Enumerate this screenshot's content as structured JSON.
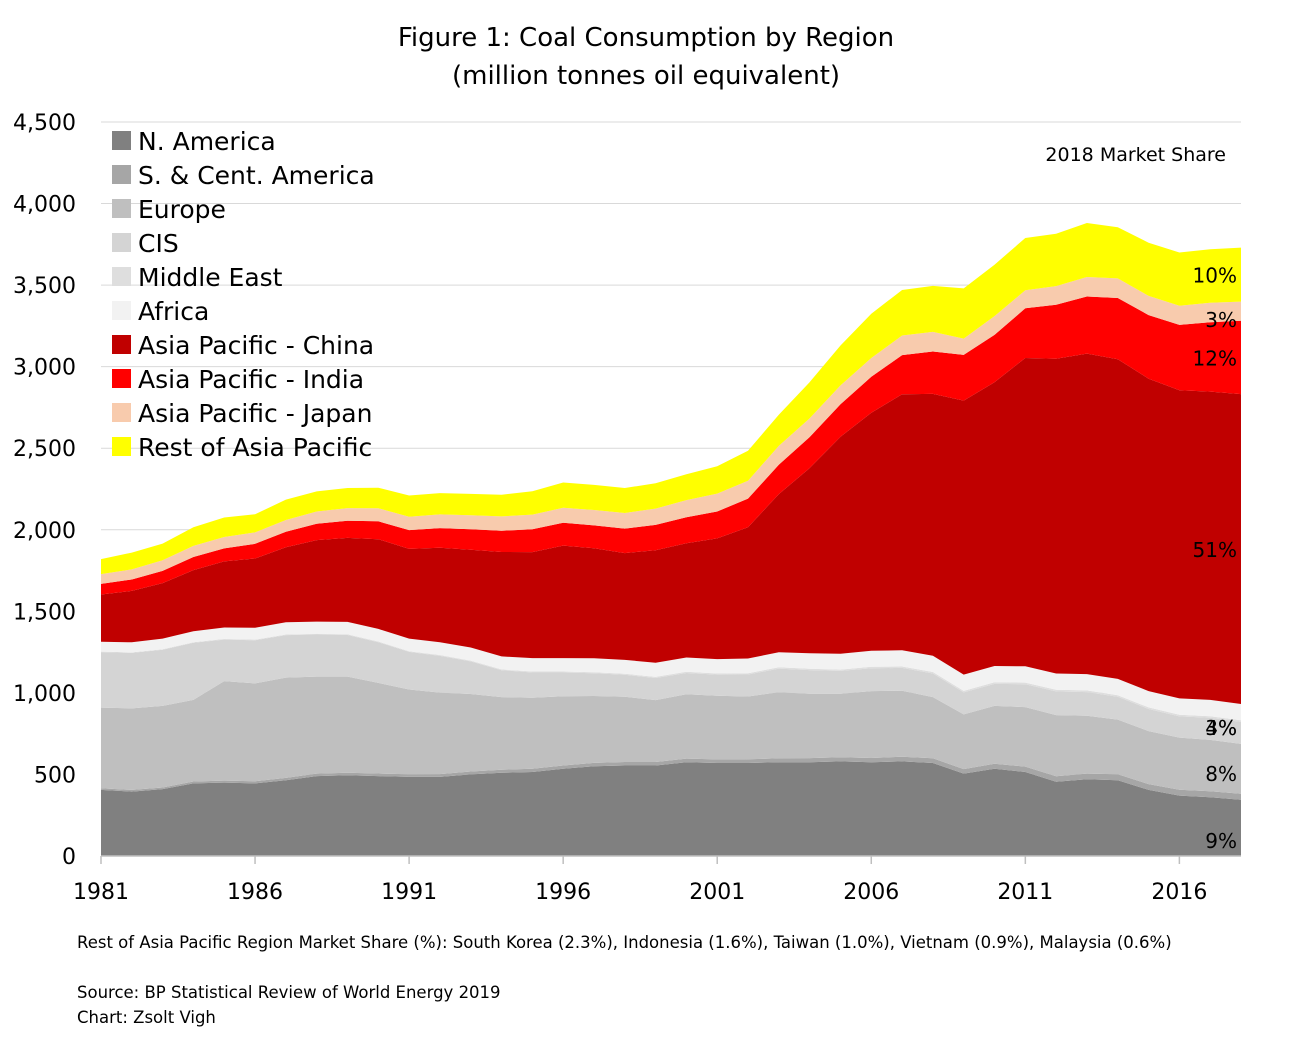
{
  "chart_data": {
    "type": "area",
    "title": "Figure 1: Coal Consumption by Region",
    "subtitle": "(million tonnes oil equivalent)",
    "xlabel": "",
    "ylabel": "",
    "ylim": [
      0,
      4500
    ],
    "yticks": [
      0,
      500,
      1000,
      1500,
      2000,
      2500,
      3000,
      3500,
      4000,
      4500
    ],
    "ytick_labels": [
      "0",
      "500",
      "1,000",
      "1,500",
      "2,000",
      "2,500",
      "3,000",
      "3,500",
      "4,000",
      "4,500"
    ],
    "xticks": [
      1981,
      1986,
      1991,
      1996,
      2001,
      2006,
      2011,
      2016
    ],
    "xtick_labels": [
      "1981",
      "1986",
      "1991",
      "1996",
      "2001",
      "2006",
      "2011",
      "2016"
    ],
    "grid": "horizontal",
    "stacked": true,
    "legend_position": "top-left",
    "x": [
      1981,
      1982,
      1983,
      1984,
      1985,
      1986,
      1987,
      1988,
      1989,
      1990,
      1991,
      1992,
      1993,
      1994,
      1995,
      1996,
      1997,
      1998,
      1999,
      2000,
      2001,
      2002,
      2003,
      2004,
      2005,
      2006,
      2007,
      2008,
      2009,
      2010,
      2011,
      2012,
      2013,
      2014,
      2015,
      2016,
      2017,
      2018
    ],
    "series": [
      {
        "name": "N. America",
        "color": "#808080",
        "values": [
          405,
          395,
          410,
          445,
          450,
          445,
          465,
          490,
          495,
          490,
          485,
          485,
          500,
          510,
          515,
          535,
          550,
          555,
          555,
          575,
          570,
          570,
          575,
          575,
          580,
          575,
          580,
          570,
          505,
          535,
          515,
          455,
          470,
          465,
          405,
          370,
          360,
          345
        ]
      },
      {
        "name": "S. & Cent. America",
        "color": "#a6a6a6",
        "values": [
          10,
          10,
          10,
          12,
          12,
          13,
          14,
          15,
          15,
          16,
          16,
          17,
          18,
          19,
          20,
          20,
          21,
          21,
          21,
          22,
          22,
          23,
          24,
          25,
          25,
          26,
          28,
          29,
          28,
          30,
          33,
          34,
          35,
          36,
          36,
          36,
          37,
          37
        ]
      },
      {
        "name": "Europe",
        "color": "#bfbfbf",
        "values": [
          495,
          500,
          500,
          500,
          610,
          600,
          615,
          595,
          590,
          555,
          520,
          500,
          475,
          445,
          435,
          425,
          410,
          400,
          380,
          395,
          390,
          385,
          405,
          395,
          390,
          410,
          405,
          375,
          335,
          355,
          365,
          375,
          355,
          335,
          325,
          320,
          315,
          305
        ]
      },
      {
        "name": "CIS",
        "color": "#d4d4d4",
        "values": [
          340,
          340,
          345,
          350,
          255,
          265,
          260,
          258,
          255,
          250,
          230,
          225,
          200,
          165,
          155,
          145,
          140,
          135,
          135,
          130,
          130,
          135,
          145,
          145,
          140,
          140,
          140,
          145,
          135,
          135,
          140,
          145,
          145,
          140,
          135,
          130,
          135,
          135
        ]
      },
      {
        "name": "Middle East",
        "color": "#dedede",
        "values": [
          3,
          3,
          3,
          3,
          4,
          4,
          4,
          4,
          4,
          4,
          4,
          5,
          5,
          5,
          6,
          6,
          6,
          6,
          7,
          7,
          7,
          8,
          8,
          8,
          8,
          9,
          9,
          9,
          9,
          10,
          10,
          10,
          10,
          10,
          10,
          10,
          10,
          10
        ]
      },
      {
        "name": "Africa",
        "color": "#f2f2f2",
        "values": [
          60,
          62,
          65,
          68,
          70,
          72,
          75,
          75,
          76,
          77,
          78,
          78,
          80,
          80,
          82,
          82,
          85,
          85,
          87,
          88,
          88,
          90,
          92,
          95,
          97,
          98,
          99,
          100,
          100,
          100,
          100,
          100,
          100,
          100,
          100,
          100,
          100,
          100
        ]
      },
      {
        "name": "Asia Pacific - China",
        "color": "#c00000",
        "values": [
          290,
          315,
          340,
          375,
          405,
          425,
          460,
          500,
          515,
          550,
          550,
          580,
          600,
          640,
          650,
          690,
          675,
          655,
          690,
          700,
          740,
          805,
          970,
          1135,
          1330,
          1460,
          1570,
          1605,
          1680,
          1740,
          1890,
          1930,
          1965,
          1960,
          1915,
          1890,
          1890,
          1900
        ]
      },
      {
        "name": "Asia Pacific - India",
        "color": "#ff0000",
        "values": [
          65,
          70,
          75,
          80,
          80,
          90,
          95,
          100,
          105,
          110,
          115,
          120,
          125,
          130,
          140,
          140,
          140,
          150,
          155,
          160,
          165,
          175,
          180,
          190,
          200,
          220,
          240,
          260,
          280,
          290,
          305,
          330,
          350,
          375,
          390,
          400,
          425,
          450
        ]
      },
      {
        "name": "Asia Pacific - Japan",
        "color": "#f8cbad",
        "values": [
          60,
          62,
          65,
          68,
          70,
          70,
          72,
          75,
          78,
          80,
          82,
          84,
          86,
          88,
          90,
          92,
          94,
          96,
          100,
          105,
          110,
          110,
          115,
          115,
          115,
          115,
          120,
          120,
          100,
          115,
          110,
          115,
          120,
          120,
          118,
          118,
          120,
          117
        ]
      },
      {
        "name": "Rest of Asia Pacific",
        "color": "#ffff00",
        "values": [
          92,
          103,
          102,
          114,
          119,
          111,
          125,
          123,
          123,
          126,
          130,
          131,
          131,
          133,
          143,
          155,
          154,
          153,
          155,
          158,
          168,
          184,
          191,
          222,
          245,
          272,
          279,
          282,
          308,
          315,
          321,
          321,
          331,
          314,
          326,
          326,
          328,
          331
        ]
      }
    ],
    "share_labels": [
      {
        "text": "10%",
        "series": "Rest of Asia Pacific"
      },
      {
        "text": "3%",
        "series": "Asia Pacific - Japan"
      },
      {
        "text": "12%",
        "series": "Asia Pacific - India"
      },
      {
        "text": "51%",
        "series": "Asia Pacific - China"
      },
      {
        "text": "3%",
        "series": "CIS"
      },
      {
        "text": "4%",
        "series": "CIS"
      },
      {
        "text": "8%",
        "series": "Europe"
      },
      {
        "text": "9%",
        "series": "N. America"
      }
    ],
    "annotation": "2018 Market Share"
  },
  "footnote": "Rest of Asia Pacific Region Market Share (%): South Korea (2.3%), Indonesia (1.6%), Taiwan (1.0%), Vietnam (0.9%), Malaysia (0.6%)",
  "source": "Source: BP Statistical Review of World Energy 2019",
  "credit": "Chart: Zsolt Vigh"
}
